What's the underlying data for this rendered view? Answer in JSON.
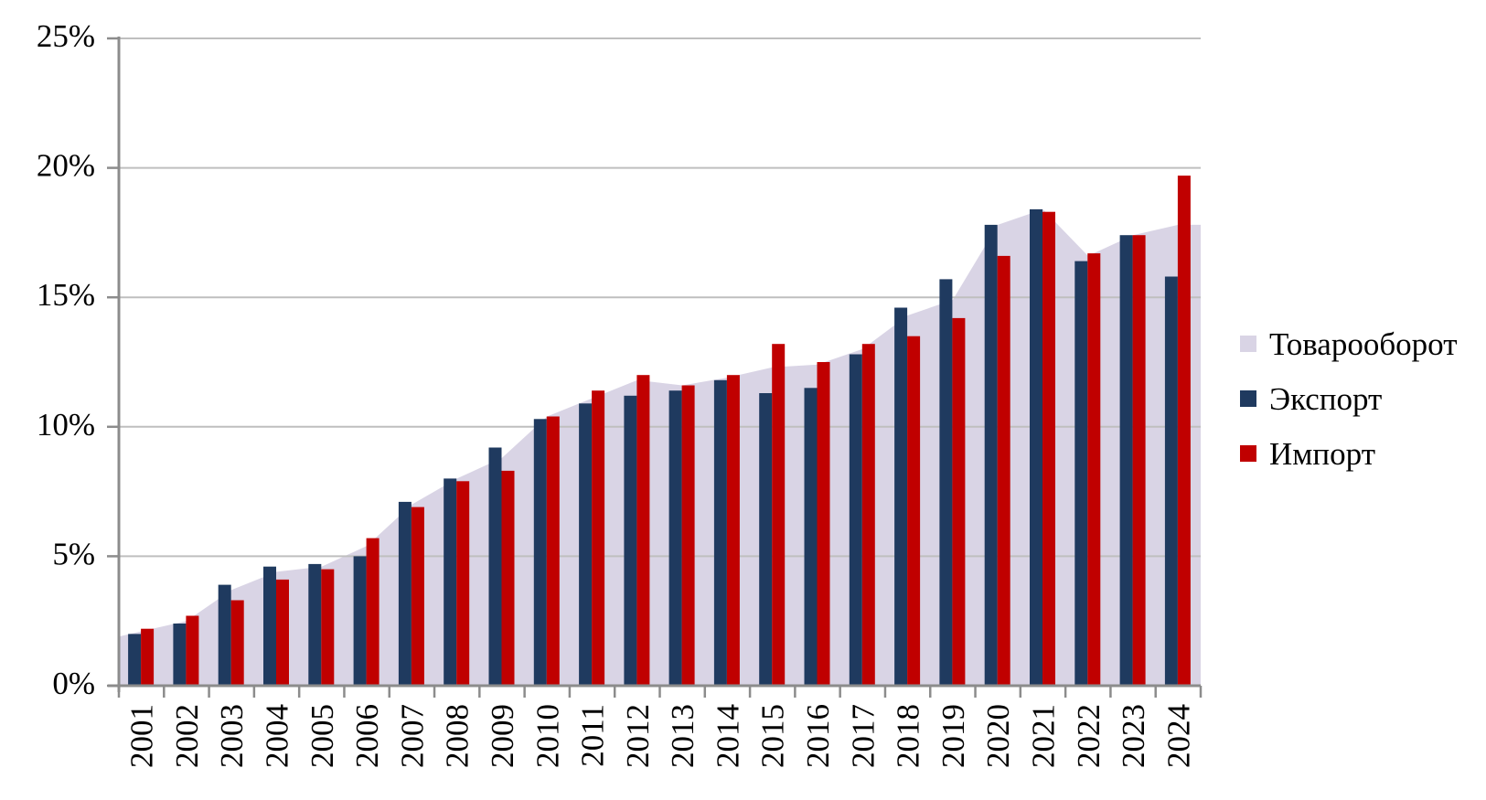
{
  "chart_data": {
    "type": "combo-area-bar",
    "title": "",
    "xlabel": "",
    "ylabel": "",
    "ylim": [
      0,
      25
    ],
    "ytick_labels": [
      "0%",
      "5%",
      "10%",
      "15%",
      "20%",
      "25%"
    ],
    "grid": true,
    "legend_position": "right",
    "grid_color": "#BFBFBF",
    "axis_color": "#8C8C8C",
    "categories": [
      "2001",
      "2002",
      "2003",
      "2004",
      "2005",
      "2006",
      "2007",
      "2008",
      "2009",
      "2010",
      "2011",
      "2012",
      "2013",
      "2014",
      "2015",
      "2016",
      "2017",
      "2018",
      "2019",
      "2020",
      "2021",
      "2022",
      "2023",
      "2024"
    ],
    "series": [
      {
        "name": "Товарооборот",
        "type": "area",
        "color": "#D9D4E5",
        "values": [
          2.1,
          2.5,
          3.7,
          4.4,
          4.6,
          5.4,
          7.0,
          8.0,
          8.8,
          10.4,
          11.1,
          11.8,
          11.6,
          11.9,
          12.3,
          12.4,
          13.0,
          14.3,
          14.9,
          17.8,
          18.4,
          16.6,
          17.4,
          17.8
        ]
      },
      {
        "name": "Экспорт",
        "type": "bar",
        "color": "#1F3A5F",
        "values": [
          2.0,
          2.4,
          3.9,
          4.6,
          4.7,
          5.0,
          7.1,
          8.0,
          9.2,
          10.3,
          10.9,
          11.2,
          11.4,
          11.8,
          11.3,
          11.5,
          12.8,
          14.6,
          15.7,
          17.8,
          18.4,
          16.4,
          17.4,
          15.8
        ]
      },
      {
        "name": "Импорт",
        "type": "bar",
        "color": "#C00000",
        "values": [
          2.2,
          2.7,
          3.3,
          4.1,
          4.5,
          5.7,
          6.9,
          7.9,
          8.3,
          10.4,
          11.4,
          12.0,
          11.6,
          12.0,
          13.2,
          12.5,
          13.2,
          13.5,
          14.2,
          16.6,
          18.3,
          16.7,
          17.4,
          19.7
        ]
      }
    ]
  }
}
